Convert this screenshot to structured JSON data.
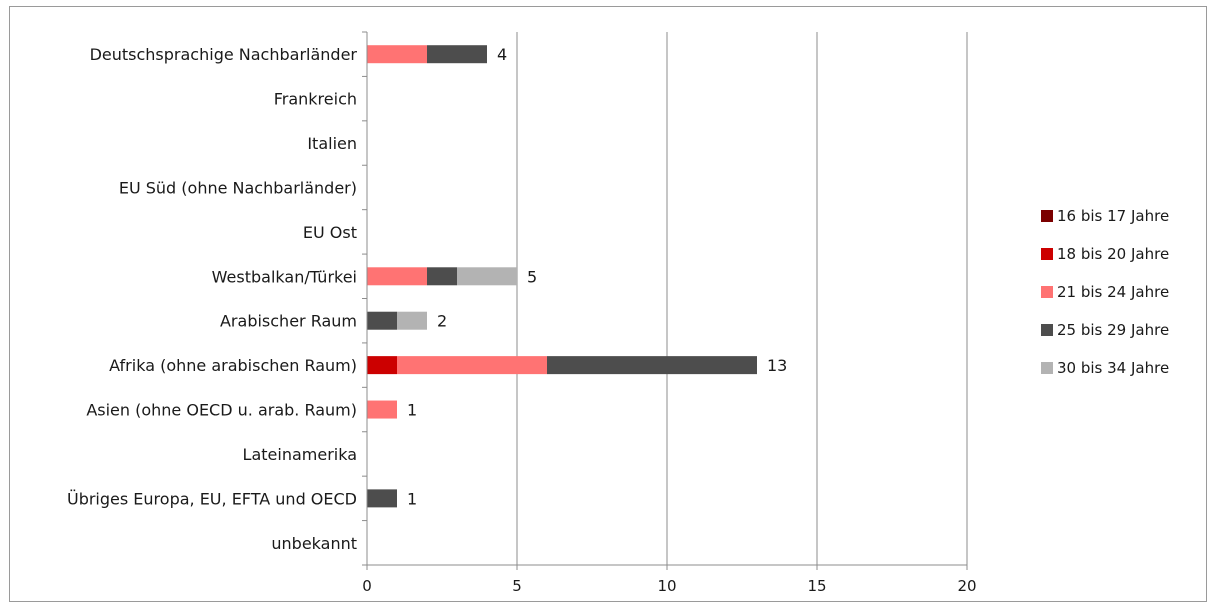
{
  "chart_data": {
    "type": "bar",
    "orientation": "horizontal",
    "stacked": true,
    "categories": [
      "Deutschsprachige Nachbarländer",
      "Frankreich",
      "Italien",
      "EU Süd (ohne Nachbarländer)",
      "EU Ost",
      "Westbalkan/Türkei",
      "Arabischer Raum",
      "Afrika (ohne arabischen Raum)",
      "Asien (ohne OECD u. arab. Raum)",
      "Lateinamerika",
      "Übriges Europa, EU, EFTA und OECD",
      "unbekannt"
    ],
    "series": [
      {
        "name": "16 bis 17 Jahre",
        "color": "#7b0000",
        "values": [
          0,
          0,
          0,
          0,
          0,
          0,
          0,
          0,
          0,
          0,
          0,
          0
        ]
      },
      {
        "name": "18 bis 20 Jahre",
        "color": "#cc0000",
        "values": [
          0,
          0,
          0,
          0,
          0,
          0,
          0,
          1,
          0,
          0,
          0,
          0
        ]
      },
      {
        "name": "21 bis 24 Jahre",
        "color": "#ff7373",
        "values": [
          2,
          0,
          0,
          0,
          0,
          2,
          0,
          5,
          1,
          0,
          0,
          0
        ]
      },
      {
        "name": "25 bis 29 Jahre",
        "color": "#4d4d4d",
        "values": [
          2,
          0,
          0,
          0,
          0,
          1,
          1,
          7,
          0,
          0,
          1,
          0
        ]
      },
      {
        "name": "30 bis 34 Jahre",
        "color": "#b3b3b3",
        "values": [
          0,
          0,
          0,
          0,
          0,
          2,
          1,
          0,
          0,
          0,
          0,
          0
        ]
      }
    ],
    "totals": [
      "4",
      "",
      "",
      "",
      "",
      "5",
      "2",
      "13",
      "1",
      "",
      "1",
      ""
    ],
    "xlim": [
      0,
      20
    ],
    "xticks": [
      "0",
      "5",
      "10",
      "15",
      "20"
    ],
    "grid": "vertical",
    "legend_position": "right"
  }
}
